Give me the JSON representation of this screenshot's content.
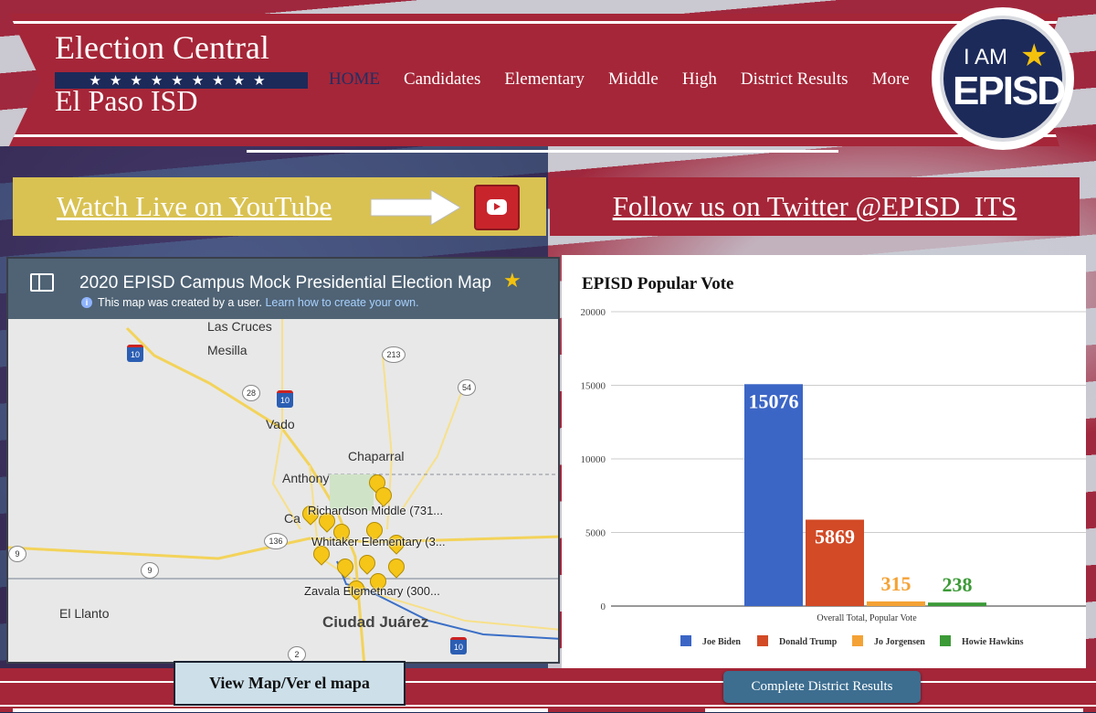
{
  "site": {
    "title": "Election Central",
    "subtitle": "El Paso ISD",
    "stars": "★★★★★★★★★"
  },
  "nav": {
    "items": [
      "HOME",
      "Candidates",
      "Elementary",
      "Middle",
      "High",
      "District Results",
      "More"
    ],
    "active": "HOME"
  },
  "logo": {
    "iam": "I AM",
    "episd": "EPISD"
  },
  "social": {
    "youtube_label": "Watch Live on YouTube",
    "twitter_label": "Follow us on Twitter @EPISD_ITS"
  },
  "map": {
    "title": "2020 EPISD Campus Mock Presidential Election Map",
    "note": "This map was created by a user.",
    "note_link": "Learn how to create your own.",
    "places": [
      "Las Cruces",
      "Mesilla",
      "Vado",
      "Chaparral",
      "Anthony",
      "El Llanto",
      "Ciudad Juárez",
      "Ca",
      "El"
    ],
    "school_labels": [
      "Richardson Middle (731...",
      "Whitaker Elementary (3...",
      "Zavala Elemetnary (300..."
    ],
    "road_shields": [
      "10",
      "213",
      "28",
      "10",
      "54",
      "136",
      "9",
      "9",
      "2",
      "10"
    ]
  },
  "colors": {
    "accent": "#a52638",
    "navy": "#1c2a5a",
    "gold": "#d9c252"
  },
  "chart_data": {
    "type": "bar",
    "title": "EPISD Popular Vote",
    "categories": [
      "Overall Total, Popular Vote"
    ],
    "ylim": [
      0,
      20000
    ],
    "yticks": [
      "0",
      "5000",
      "10000",
      "15000",
      "20000"
    ],
    "grid": true,
    "legend_position": "bottom",
    "series": [
      {
        "name": "Joe Biden",
        "values": [
          15076
        ],
        "color": "#3c66c6",
        "label": "15076"
      },
      {
        "name": "Donald Trump",
        "values": [
          5869
        ],
        "color": "#d24a26",
        "label": "5869"
      },
      {
        "name": "Jo Jorgensen",
        "values": [
          315
        ],
        "color": "#f4a235",
        "label": "315"
      },
      {
        "name": "Howie Hawkins",
        "values": [
          238
        ],
        "color": "#3c9a37",
        "label": "238"
      }
    ]
  },
  "buttons": {
    "view_map": "View Map/Ver el mapa",
    "complete_results": "Complete District Results"
  }
}
